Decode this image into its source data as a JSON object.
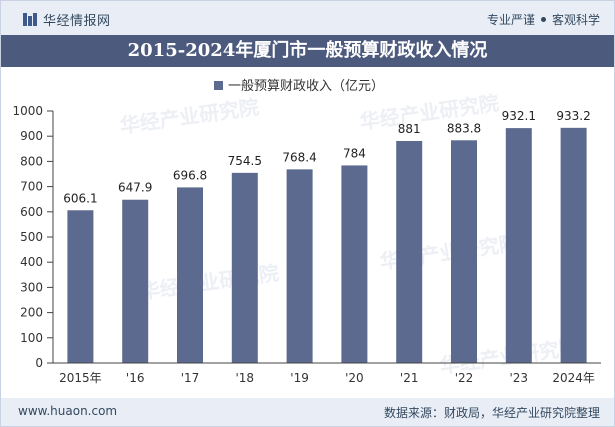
{
  "header": {
    "brand": "华经情报网",
    "tags": [
      "专业严谨",
      "客观科学"
    ]
  },
  "title": "2015-2024年厦门市一般预算财政收入情况",
  "footer": {
    "website": "www.huaon.com",
    "source": "数据来源：财政局，华经产业研究院整理"
  },
  "watermark": "华经产业研究院",
  "colors": {
    "bar": "#5b6a8e",
    "title_bg": "#4c5a7e",
    "header_bg": "#e9eef6"
  },
  "chart_data": {
    "type": "bar",
    "categories": [
      "2015年",
      "'16",
      "'17",
      "'18",
      "'19",
      "'20",
      "'21",
      "'22",
      "'23",
      "2024年"
    ],
    "series": [
      {
        "name": "一般预算财政收入（亿元）",
        "values": [
          606.1,
          647.9,
          696.8,
          754.5,
          768.4,
          784,
          881,
          883.8,
          932.1,
          933.2
        ]
      }
    ],
    "data_labels": [
      "606.1",
      "647.9",
      "696.8",
      "754.5",
      "768.4",
      "784",
      "881",
      "883.8",
      "932.1",
      "933.2"
    ],
    "ylim": [
      0,
      1000
    ],
    "yticks": [
      0,
      100,
      200,
      300,
      400,
      500,
      600,
      700,
      800,
      900,
      1000
    ],
    "legend_position": "top-center",
    "grid": false
  }
}
